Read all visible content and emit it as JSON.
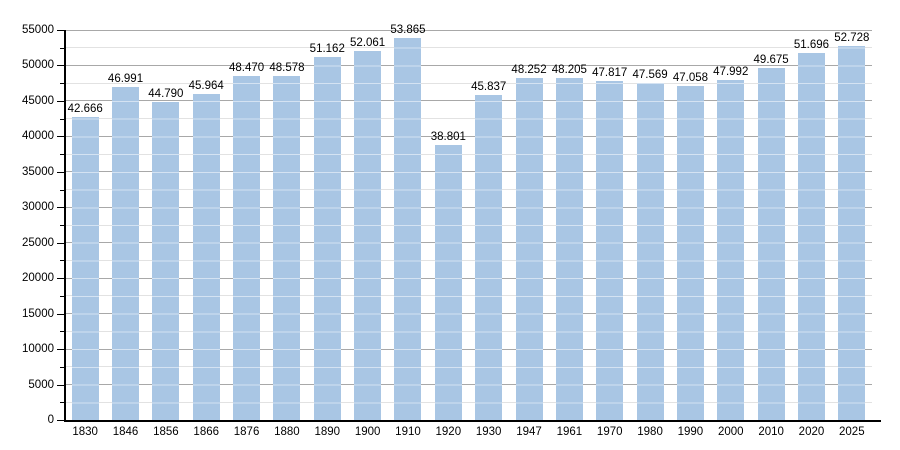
{
  "chart_data": {
    "type": "bar",
    "title": "",
    "xlabel": "",
    "ylabel": "",
    "categories": [
      "1830",
      "1846",
      "1856",
      "1866",
      "1876",
      "1880",
      "1890",
      "1900",
      "1910",
      "1920",
      "1930",
      "1947",
      "1961",
      "1970",
      "1980",
      "1990",
      "2000",
      "2010",
      "2020",
      "2025"
    ],
    "values": [
      42666,
      46991,
      44790,
      45964,
      48470,
      48578,
      51162,
      52061,
      53865,
      38801,
      45837,
      48252,
      48205,
      47817,
      47569,
      47058,
      47992,
      49675,
      51696,
      52728
    ],
    "value_labels": [
      "42.666",
      "46.991",
      "44.790",
      "45.964",
      "48.470",
      "48.578",
      "51.162",
      "52.061",
      "53.865",
      "38.801",
      "45.837",
      "48.252",
      "48.205",
      "47.817",
      "47.569",
      "47.058",
      "47.992",
      "49.675",
      "51.696",
      "52.728"
    ],
    "ylim": [
      0,
      55000
    ],
    "ytick_major_step": 5000,
    "ytick_minor_step": 2500,
    "ytick_labels": [
      "0",
      "5000",
      "10000",
      "15000",
      "20000",
      "25000",
      "30000",
      "35000",
      "40000",
      "45000",
      "50000",
      "55000"
    ],
    "grid": "on",
    "legend_position": "none",
    "colors": {
      "bar": "#a9c6e4",
      "bar_stripe": "rgba(255,255,255,0.5)",
      "grid_major": "#a8a8a8",
      "grid_minor": "#e2e2e2",
      "axis": "#000000",
      "text": "#000000",
      "background": "#ffffff"
    }
  }
}
